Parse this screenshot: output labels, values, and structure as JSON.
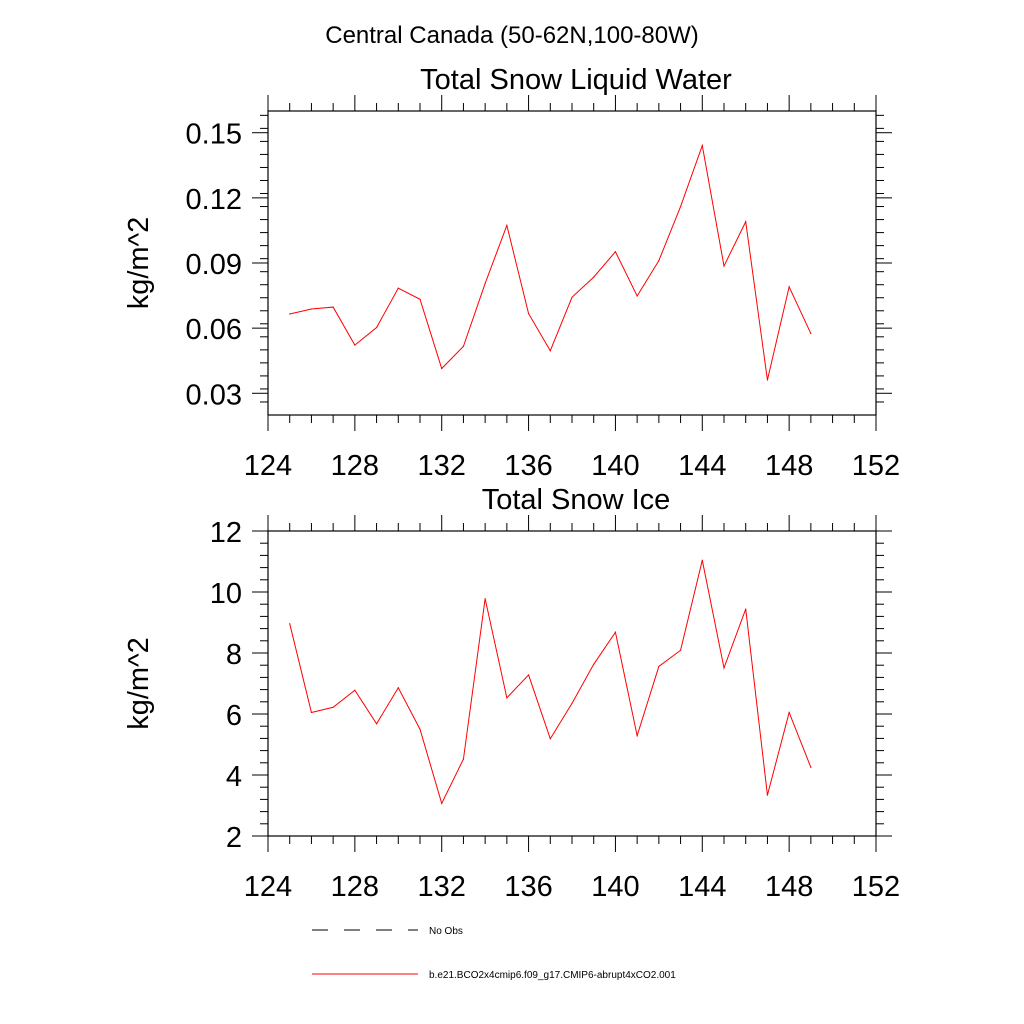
{
  "figure": {
    "suptitle": "Central Canada (50-62N,100-80W)"
  },
  "colors": {
    "series": "#ff0000",
    "no_obs": "#000000"
  },
  "legend": {
    "placement": "bottom-left",
    "entries": [
      {
        "label": "No Obs",
        "style": "dashed"
      },
      {
        "label": "b.e21.BCO2x4cmip6.f09_g17.CMIP6-abrupt4xCO2.001",
        "style": "solid"
      }
    ]
  },
  "chart_data": [
    {
      "type": "line",
      "title": "Total Snow Liquid Water",
      "xlabel": "",
      "ylabel": "kg/m^2",
      "xlim": [
        124,
        152
      ],
      "ylim": [
        0.02,
        0.16
      ],
      "x_ticks": [
        "124",
        "128",
        "132",
        "136",
        "140",
        "144",
        "148",
        "152"
      ],
      "y_ticks": [
        "0.03",
        "0.06",
        "0.09",
        "0.12",
        "0.15"
      ],
      "grid": false,
      "x": [
        125,
        126,
        127,
        128,
        129,
        130,
        131,
        132,
        133,
        134,
        135,
        136,
        137,
        138,
        139,
        140,
        141,
        142,
        143,
        144,
        145,
        146,
        147,
        148,
        149
      ],
      "series": [
        {
          "name": "b.e21.BCO2x4cmip6.f09_g17.CMIP6-abrupt4xCO2.001",
          "values": [
            0.0665,
            0.0688,
            0.0697,
            0.0522,
            0.0603,
            0.0784,
            0.0733,
            0.0414,
            0.0516,
            0.0806,
            0.1073,
            0.0667,
            0.0496,
            0.0742,
            0.0835,
            0.0952,
            0.0748,
            0.0911,
            0.116,
            0.1441,
            0.0886,
            0.109,
            0.0361,
            0.079,
            0.0575
          ]
        }
      ]
    },
    {
      "type": "line",
      "title": "Total Snow Ice",
      "xlabel": "",
      "ylabel": "kg/m^2",
      "xlim": [
        124,
        152
      ],
      "ylim": [
        2,
        12
      ],
      "x_ticks": [
        "124",
        "128",
        "132",
        "136",
        "140",
        "144",
        "148",
        "152"
      ],
      "y_ticks": [
        "2",
        "4",
        "6",
        "8",
        "10",
        "12"
      ],
      "grid": false,
      "x": [
        125,
        126,
        127,
        128,
        129,
        130,
        131,
        132,
        133,
        134,
        135,
        136,
        137,
        138,
        139,
        140,
        141,
        142,
        143,
        144,
        145,
        146,
        147,
        148,
        149
      ],
      "series": [
        {
          "name": "b.e21.BCO2x4cmip6.f09_g17.CMIP6-abrupt4xCO2.001",
          "values": [
            8.96,
            6.05,
            6.22,
            6.78,
            5.68,
            6.86,
            5.5,
            3.07,
            4.52,
            9.78,
            6.53,
            7.28,
            5.19,
            6.35,
            7.63,
            8.68,
            5.29,
            7.56,
            8.09,
            11.04,
            7.51,
            9.44,
            3.34,
            6.05,
            4.25
          ]
        }
      ]
    }
  ]
}
